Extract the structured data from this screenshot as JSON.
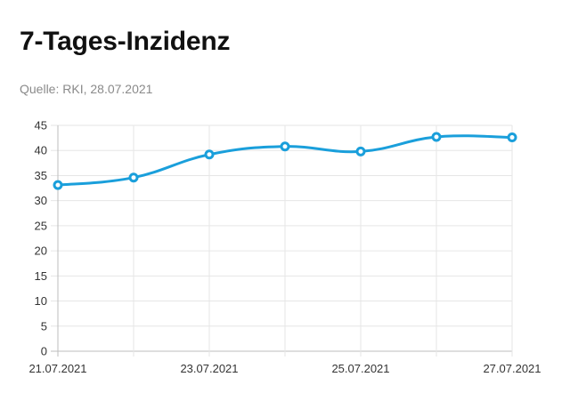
{
  "header": {
    "title": "7-Tages-Inzidenz",
    "source": "Quelle: RKI, 28.07.2021"
  },
  "chart_data": {
    "type": "line",
    "title": "7-Tages-Inzidenz",
    "subtitle": "Quelle: RKI, 28.07.2021",
    "xlabel": "",
    "ylabel": "",
    "x": [
      "21.07.2021",
      "22.07.2021",
      "23.07.2021",
      "24.07.2021",
      "25.07.2021",
      "26.07.2021",
      "27.07.2021"
    ],
    "x_tick_labels": [
      "21.07.2021",
      "23.07.2021",
      "25.07.2021",
      "27.07.2021"
    ],
    "series": [
      {
        "values": [
          33.1,
          34.6,
          39.2,
          40.8,
          39.8,
          42.7,
          42.6
        ]
      }
    ],
    "ylim": [
      0,
      45
    ],
    "yticks": [
      0,
      5,
      10,
      15,
      20,
      25,
      30,
      35,
      40,
      45
    ],
    "grid": true,
    "smooth": true,
    "color": "#1a9fdb"
  }
}
